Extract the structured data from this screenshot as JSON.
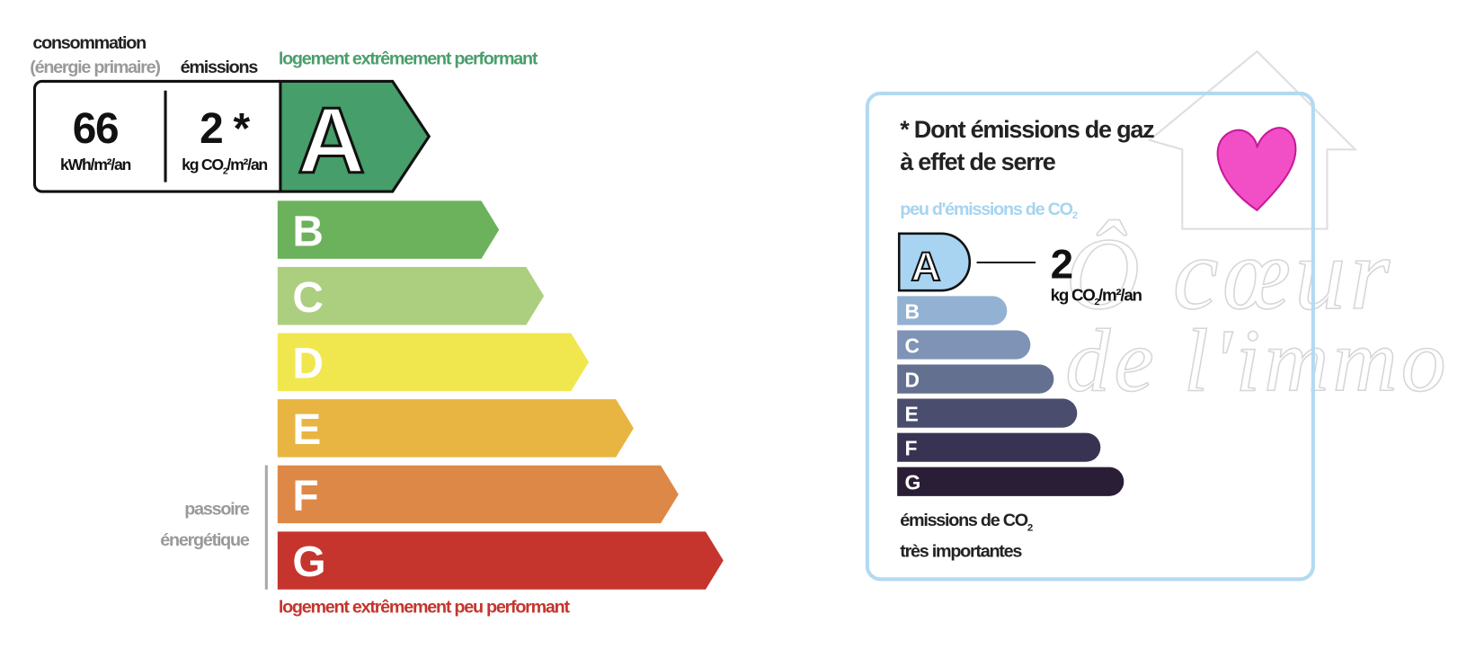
{
  "energy": {
    "consumption_label": "consommation",
    "primary_label": "(énergie primaire)",
    "emissions_label": "émissions",
    "top_label": "logement extrêmement performant",
    "bottom_label": "logement extrêmement peu performant",
    "consumption_value": "66",
    "consumption_unit": "kWh/m²/an",
    "emissions_value": "2 *",
    "emissions_unit": [
      "kg CO",
      "2",
      "/m²/an"
    ],
    "passoire": [
      "passoire",
      "énergétique"
    ],
    "classes": [
      "A",
      "B",
      "C",
      "D",
      "E",
      "F",
      "G"
    ]
  },
  "ges": {
    "title": [
      "* Dont émissions de gaz",
      "à effet de serre"
    ],
    "top_label": [
      "peu d'émissions de CO",
      "2"
    ],
    "value": "2",
    "unit": [
      "kg CO",
      "2",
      "/m²/an"
    ],
    "classes": [
      "A",
      "B",
      "C",
      "D",
      "E",
      "F",
      "G"
    ],
    "bottom_label": [
      "émissions de CO",
      "2",
      "très importantes"
    ]
  },
  "watermark": [
    "Ô cœur",
    "de l'immo"
  ]
}
